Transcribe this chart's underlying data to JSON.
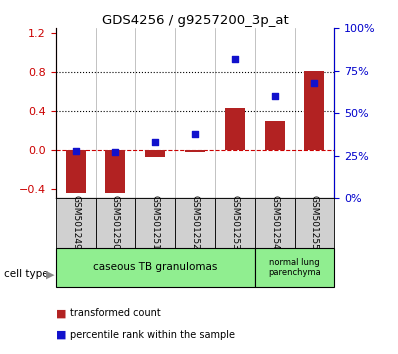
{
  "title": "GDS4256 / g9257200_3p_at",
  "samples": [
    "GSM501249",
    "GSM501250",
    "GSM501251",
    "GSM501252",
    "GSM501253",
    "GSM501254",
    "GSM501255"
  ],
  "red_bars": [
    -0.45,
    -0.45,
    -0.08,
    -0.02,
    0.43,
    0.3,
    0.81
  ],
  "blue_right": [
    28,
    27,
    33,
    38,
    82,
    60,
    68
  ],
  "ylim_left": [
    -0.5,
    1.25
  ],
  "yticks_left": [
    -0.4,
    0.0,
    0.4,
    0.8,
    1.2
  ],
  "ylim_right": [
    0,
    100
  ],
  "yticks_right": [
    0,
    25,
    50,
    75,
    100
  ],
  "yticklabels_right": [
    "0%",
    "25%",
    "50%",
    "75%",
    "100%"
  ],
  "hlines": [
    0.4,
    0.8
  ],
  "bar_color": "#B22222",
  "dot_color": "#1111CC",
  "zero_line_color": "#CC0000",
  "hline_color": "#000000",
  "cell_type_label": "cell type",
  "legend_red": "transformed count",
  "legend_blue": "percentile rank within the sample",
  "tick_label_color_left": "#CC0000",
  "tick_label_color_right": "#0000CC",
  "ct1_label": "caseous TB granulomas",
  "ct1_count": 5,
  "ct2_label": "normal lung\nparenchyma",
  "ct2_count": 2,
  "ct_color": "#90EE90"
}
